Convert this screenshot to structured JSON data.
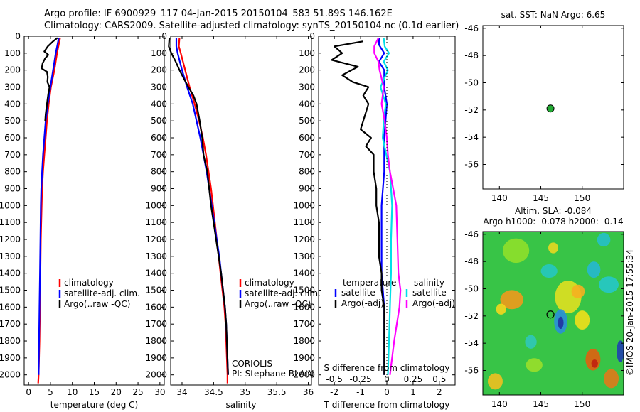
{
  "header": {
    "title_line1": "Argo profile: IF 6900929_117 04-Jan-2015 20150104_583 51.89S 146.162E",
    "title_line2": "Climatology: CARS2009. Satellite-adjusted climatology: synTS_20150104.nc (0.1d earlier)"
  },
  "colors": {
    "climatology": "#ff0000",
    "satellite": "#0000ff",
    "argo": "#000000",
    "satellite_diff": "#00e0e8",
    "argo_diff_salinity": "#ff00ff",
    "marker": "#22aa33"
  },
  "depth_ticks": [
    "0",
    "100",
    "200",
    "300",
    "400",
    "500",
    "600",
    "700",
    "800",
    "900",
    "1000",
    "1100",
    "1200",
    "1300",
    "1400",
    "1500",
    "1600",
    "1700",
    "1800",
    "1900",
    "2000"
  ],
  "chart_data": [
    {
      "type": "line",
      "xlabel": "temperature (deg C)",
      "xlim": [
        -1,
        31
      ],
      "xticks": [
        "0",
        "5",
        "10",
        "15",
        "20",
        "25",
        "30"
      ],
      "ylim": [
        0,
        2060
      ],
      "legend": [
        "climatology",
        "satellite-adj. clim.",
        "Argo(..raw -QC)"
      ],
      "series": [
        {
          "name": "climatology",
          "depth": [
            10,
            50,
            100,
            150,
            200,
            300,
            400,
            500,
            600,
            700,
            800,
            900,
            1000,
            1200,
            1400,
            1600,
            1800,
            2000,
            2050
          ],
          "values": [
            7.2,
            6.9,
            6.5,
            6.2,
            5.9,
            5.1,
            4.6,
            4.2,
            3.9,
            3.6,
            3.3,
            3.1,
            3.0,
            2.8,
            2.7,
            2.6,
            2.5,
            2.3,
            2.2
          ]
        },
        {
          "name": "satellite-adj. clim.",
          "depth": [
            10,
            50,
            100,
            150,
            200,
            300,
            400,
            500,
            600,
            700,
            800,
            900,
            1000,
            1200,
            1400,
            1600,
            1800,
            2000
          ],
          "values": [
            6.9,
            6.6,
            6.2,
            5.9,
            5.6,
            5.0,
            4.4,
            3.9,
            3.6,
            3.3,
            3.1,
            2.9,
            2.8,
            2.7,
            2.6,
            2.5,
            2.4,
            2.3
          ]
        },
        {
          "name": "Argo(..raw -QC)",
          "depth": [
            10,
            30,
            60,
            90,
            110,
            130,
            160,
            190,
            210,
            240,
            270,
            300,
            340,
            380,
            420,
            460,
            500
          ],
          "values": [
            6.6,
            5.6,
            4.4,
            3.6,
            4.5,
            3.8,
            3.2,
            3.0,
            4.2,
            4.4,
            4.3,
            4.8,
            4.5,
            4.3,
            4.1,
            3.9,
            3.8
          ]
        }
      ]
    },
    {
      "type": "line",
      "xlabel": "salinity",
      "xlim": [
        33.82,
        36.05
      ],
      "xticks": [
        "34",
        "34.5",
        "35",
        "35.5",
        "36"
      ],
      "ylim": [
        0,
        2060
      ],
      "legend": [
        "climatology",
        "satellite-adj. clim.",
        "Argo(..raw -QC)"
      ],
      "annotations": [
        "CORIOLIS",
        "PI: Stephane BLAIN"
      ],
      "series": [
        {
          "name": "climatology",
          "depth": [
            10,
            60,
            100,
            200,
            300,
            400,
            500,
            600,
            700,
            800,
            900,
            1000,
            1100,
            1200,
            1300,
            1400,
            1500,
            1600,
            1700,
            1800,
            1900,
            2000,
            2050
          ],
          "values": [
            33.96,
            33.95,
            33.98,
            34.05,
            34.12,
            34.2,
            34.27,
            34.33,
            34.38,
            34.42,
            34.46,
            34.49,
            34.52,
            34.55,
            34.58,
            34.61,
            34.64,
            34.67,
            34.69,
            34.7,
            34.71,
            34.72,
            34.72
          ]
        },
        {
          "name": "satellite-adj. clim.",
          "depth": [
            10,
            60,
            100,
            200,
            300,
            400,
            500,
            600,
            700,
            800,
            900,
            1000,
            1100,
            1200,
            1300,
            1400,
            1500,
            1600,
            1700,
            1800,
            1900,
            2000
          ],
          "values": [
            33.91,
            33.91,
            33.93,
            34.0,
            34.08,
            34.17,
            34.23,
            34.29,
            34.34,
            34.39,
            34.43,
            34.47,
            34.51,
            34.55,
            34.59,
            34.62,
            34.65,
            34.68,
            34.7,
            34.71,
            34.72,
            34.73
          ]
        },
        {
          "name": "Argo(..raw -QC)",
          "depth": [
            10,
            60,
            100,
            150,
            200,
            250,
            300,
            350,
            400,
            500,
            600,
            700,
            800,
            900,
            1000,
            1100,
            1200,
            1300,
            1400,
            1500,
            1600,
            1700,
            1800,
            1900,
            2000
          ],
          "values": [
            33.8,
            33.79,
            33.83,
            33.9,
            33.96,
            34.03,
            34.1,
            34.18,
            34.23,
            34.28,
            34.32,
            34.34,
            34.4,
            34.43,
            34.46,
            34.5,
            34.54,
            34.58,
            34.62,
            34.65,
            34.68,
            34.7,
            34.71,
            34.72,
            34.73
          ]
        }
      ]
    },
    {
      "type": "line",
      "xlabel": "T difference from climatology",
      "xlabel2": "S difference from climatology",
      "xlim": [
        -2.6,
        2.6
      ],
      "xticks": [
        "-2",
        "-1",
        "0",
        "1",
        "2"
      ],
      "xticks2": [
        "-0.5",
        "-0.25",
        "0",
        "0.25",
        "0.5"
      ],
      "ylim": [
        0,
        2060
      ],
      "legend_titles": [
        "temperature",
        "salinity"
      ],
      "legend": [
        "satellite",
        "Argo(-adj)",
        "satellite",
        "Argo(-adj)"
      ],
      "series": [
        {
          "name": "satellite",
          "depth": [
            10,
            50,
            100,
            150,
            200,
            300,
            400,
            600,
            800,
            1000,
            1200,
            1400,
            1600,
            1800,
            2000
          ],
          "values": [
            -0.3,
            -0.3,
            -0.1,
            -0.3,
            -0.1,
            -0.1,
            0.0,
            -0.1,
            -0.1,
            -0.2,
            -0.2,
            -0.2,
            -0.1,
            -0.1,
            -0.1
          ]
        },
        {
          "name": "Argo(-adj)",
          "depth": [
            30,
            60,
            100,
            140,
            180,
            230,
            270,
            300,
            350,
            400,
            450,
            500,
            550,
            600,
            650,
            700,
            800,
            900,
            1000,
            1100,
            1200,
            1300,
            1400,
            1500,
            1600,
            1800,
            2000
          ],
          "values": [
            -0.9,
            -2.0,
            -1.7,
            -2.1,
            -1.1,
            -1.7,
            -1.3,
            -0.7,
            -0.9,
            -0.7,
            -0.8,
            -0.9,
            -1.0,
            -0.6,
            -0.8,
            -0.5,
            -0.5,
            -0.4,
            -0.4,
            -0.3,
            -0.3,
            -0.3,
            -0.2,
            -0.2,
            -0.1,
            -0.1,
            -0.1
          ]
        },
        {
          "name": "satellite (salinity)",
          "depth": [
            10,
            60,
            100,
            150,
            200,
            300,
            400,
            500,
            600,
            800,
            1000,
            1200,
            1400,
            1600,
            1800,
            2000
          ],
          "values": [
            -0.03,
            -0.02,
            0.02,
            -0.03,
            0.01,
            -0.06,
            -0.01,
            -0.03,
            -0.04,
            0.03,
            0.05,
            0.04,
            0.04,
            0.03,
            0.02,
            0.01
          ]
        },
        {
          "name": "Argo(-adj) (salinity)",
          "depth": [
            10,
            60,
            100,
            150,
            200,
            300,
            400,
            500,
            600,
            700,
            800,
            900,
            1000,
            1200,
            1400,
            1500,
            1600,
            1800,
            2000
          ],
          "values": [
            -0.08,
            -0.12,
            -0.12,
            -0.08,
            -0.07,
            -0.03,
            -0.05,
            -0.02,
            0.0,
            0.01,
            0.03,
            0.06,
            0.09,
            0.1,
            0.11,
            0.13,
            0.12,
            0.07,
            0.03
          ]
        }
      ]
    },
    {
      "type": "scatter",
      "title": "sat. SST: NaN Argo: 6.65",
      "xlim": [
        138,
        155
      ],
      "ylim": [
        -57.8,
        -45.8
      ],
      "xticks": [
        "140",
        "145",
        "150"
      ],
      "yticks": [
        "-46",
        "-48",
        "-50",
        "-52",
        "-54",
        "-56"
      ],
      "point": {
        "x": 146.162,
        "y": -51.89
      }
    },
    {
      "type": "heatmap",
      "title_line1": "Altim. SLA: -0.084",
      "title_line2": "Argo h1000: -0.078 h2000: -0.14",
      "xlim": [
        138,
        155
      ],
      "ylim": [
        -57.8,
        -45.8
      ],
      "xticks": [
        "140",
        "145",
        "150"
      ],
      "yticks": [
        "-46",
        "-48",
        "-50",
        "-52",
        "-54",
        "-56"
      ],
      "point": {
        "x": 146.162,
        "y": -51.89
      }
    }
  ],
  "watermark": "©IMOS 20-Jan-2015 17:55:34"
}
